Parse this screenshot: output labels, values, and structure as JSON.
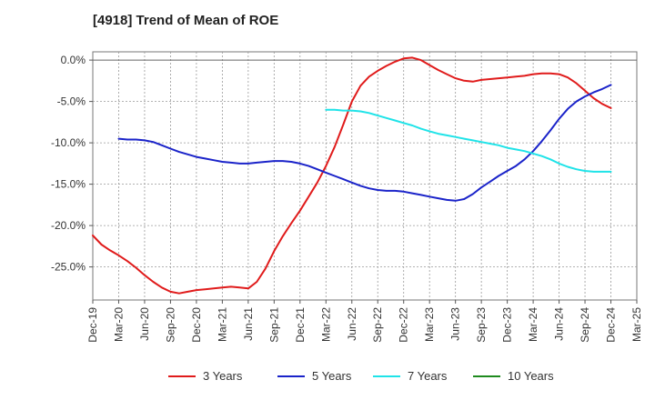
{
  "chart_data": {
    "type": "line",
    "title": "[4918]  Trend of Mean of ROE",
    "xlabel": "",
    "ylabel": "",
    "x_ticks": [
      "Dec-19",
      "Mar-20",
      "Jun-20",
      "Sep-20",
      "Dec-20",
      "Mar-21",
      "Jun-21",
      "Sep-21",
      "Dec-21",
      "Mar-22",
      "Jun-22",
      "Sep-22",
      "Dec-22",
      "Mar-23",
      "Jun-23",
      "Sep-23",
      "Dec-23",
      "Mar-24",
      "Jun-24",
      "Sep-24",
      "Dec-24",
      "Mar-25"
    ],
    "y_ticks": [
      0,
      -5,
      -10,
      -15,
      -20,
      -25
    ],
    "y_tick_labels": [
      "0.0%",
      "-5.0%",
      "-10.0%",
      "-15.0%",
      "-20.0%",
      "-25.0%"
    ],
    "ylim": [
      -29,
      1
    ],
    "grid": true,
    "legend_position": "bottom",
    "series": [
      {
        "name": "3 Years",
        "color": "#e01b1b",
        "x": [
          "Dec-19",
          "Jan-20",
          "Feb-20",
          "Mar-20",
          "Apr-20",
          "May-20",
          "Jun-20",
          "Jul-20",
          "Aug-20",
          "Sep-20",
          "Oct-20",
          "Nov-20",
          "Dec-20",
          "Jan-21",
          "Feb-21",
          "Mar-21",
          "Apr-21",
          "May-21",
          "Jun-21",
          "Jul-21",
          "Aug-21",
          "Sep-21",
          "Oct-21",
          "Nov-21",
          "Dec-21",
          "Jan-22",
          "Feb-22",
          "Mar-22",
          "Apr-22",
          "May-22",
          "Jun-22",
          "Jul-22",
          "Aug-22",
          "Sep-22",
          "Oct-22",
          "Nov-22",
          "Dec-22",
          "Jan-23",
          "Feb-23",
          "Mar-23",
          "Apr-23",
          "May-23",
          "Jun-23",
          "Jul-23",
          "Aug-23",
          "Sep-23",
          "Oct-23",
          "Nov-23",
          "Dec-23",
          "Jan-24",
          "Feb-24",
          "Mar-24",
          "Apr-24",
          "May-24",
          "Jun-24",
          "Jul-24",
          "Aug-24",
          "Sep-24",
          "Oct-24",
          "Nov-24",
          "Dec-24"
        ],
        "values": [
          -21.2,
          -22.3,
          -23.0,
          -23.6,
          -24.3,
          -25.1,
          -26.0,
          -26.8,
          -27.5,
          -28.0,
          -28.2,
          -28.0,
          -27.8,
          -27.7,
          -27.6,
          -27.5,
          -27.4,
          -27.5,
          -27.6,
          -26.8,
          -25.2,
          -23.1,
          -21.3,
          -19.7,
          -18.2,
          -16.5,
          -14.8,
          -12.8,
          -10.5,
          -7.8,
          -5.0,
          -3.1,
          -2.0,
          -1.3,
          -0.7,
          -0.2,
          0.2,
          0.3,
          0.0,
          -0.6,
          -1.2,
          -1.7,
          -2.2,
          -2.5,
          -2.6,
          -2.4,
          -2.3,
          -2.2,
          -2.1,
          -2.0,
          -1.9,
          -1.7,
          -1.6,
          -1.6,
          -1.7,
          -2.1,
          -2.8,
          -3.7,
          -4.6,
          -5.3,
          -5.8
        ]
      },
      {
        "name": "5 Years",
        "color": "#1a23c9",
        "x": [
          "Mar-20",
          "Apr-20",
          "May-20",
          "Jun-20",
          "Jul-20",
          "Aug-20",
          "Sep-20",
          "Oct-20",
          "Nov-20",
          "Dec-20",
          "Jan-21",
          "Feb-21",
          "Mar-21",
          "Apr-21",
          "May-21",
          "Jun-21",
          "Jul-21",
          "Aug-21",
          "Sep-21",
          "Oct-21",
          "Nov-21",
          "Dec-21",
          "Jan-22",
          "Feb-22",
          "Mar-22",
          "Apr-22",
          "May-22",
          "Jun-22",
          "Jul-22",
          "Aug-22",
          "Sep-22",
          "Oct-22",
          "Nov-22",
          "Dec-22",
          "Jan-23",
          "Feb-23",
          "Mar-23",
          "Apr-23",
          "May-23",
          "Jun-23",
          "Jul-23",
          "Aug-23",
          "Sep-23",
          "Oct-23",
          "Nov-23",
          "Dec-23",
          "Jan-24",
          "Feb-24",
          "Mar-24",
          "Apr-24",
          "May-24",
          "Jun-24",
          "Jul-24",
          "Aug-24",
          "Sep-24",
          "Oct-24",
          "Nov-24",
          "Dec-24"
        ],
        "values": [
          -9.5,
          -9.6,
          -9.6,
          -9.7,
          -9.9,
          -10.3,
          -10.7,
          -11.1,
          -11.4,
          -11.7,
          -11.9,
          -12.1,
          -12.3,
          -12.4,
          -12.5,
          -12.5,
          -12.4,
          -12.3,
          -12.2,
          -12.2,
          -12.3,
          -12.5,
          -12.8,
          -13.2,
          -13.6,
          -14.0,
          -14.4,
          -14.8,
          -15.2,
          -15.5,
          -15.7,
          -15.8,
          -15.8,
          -15.9,
          -16.1,
          -16.3,
          -16.5,
          -16.7,
          -16.9,
          -17.0,
          -16.8,
          -16.2,
          -15.4,
          -14.7,
          -14.0,
          -13.4,
          -12.8,
          -12.0,
          -11.0,
          -9.8,
          -8.5,
          -7.1,
          -5.9,
          -5.0,
          -4.4,
          -3.9,
          -3.5,
          -3.0
        ]
      },
      {
        "name": "7 Years",
        "color": "#1fe3e8",
        "x": [
          "Mar-22",
          "Apr-22",
          "May-22",
          "Jun-22",
          "Jul-22",
          "Aug-22",
          "Sep-22",
          "Oct-22",
          "Nov-22",
          "Dec-22",
          "Jan-23",
          "Feb-23",
          "Mar-23",
          "Apr-23",
          "May-23",
          "Jun-23",
          "Jul-23",
          "Aug-23",
          "Sep-23",
          "Oct-23",
          "Nov-23",
          "Dec-23",
          "Jan-24",
          "Feb-24",
          "Mar-24",
          "Apr-24",
          "May-24",
          "Jun-24",
          "Jul-24",
          "Aug-24",
          "Sep-24",
          "Oct-24",
          "Nov-24",
          "Dec-24"
        ],
        "values": [
          -6.0,
          -6.0,
          -6.1,
          -6.1,
          -6.2,
          -6.4,
          -6.7,
          -7.0,
          -7.3,
          -7.6,
          -7.9,
          -8.3,
          -8.6,
          -8.9,
          -9.1,
          -9.3,
          -9.5,
          -9.7,
          -9.9,
          -10.1,
          -10.3,
          -10.6,
          -10.8,
          -11.0,
          -11.3,
          -11.6,
          -12.0,
          -12.5,
          -12.9,
          -13.2,
          -13.4,
          -13.5,
          -13.5,
          -13.5
        ]
      },
      {
        "name": "10 Years",
        "color": "#1e8a1e",
        "x": [],
        "values": []
      }
    ]
  }
}
